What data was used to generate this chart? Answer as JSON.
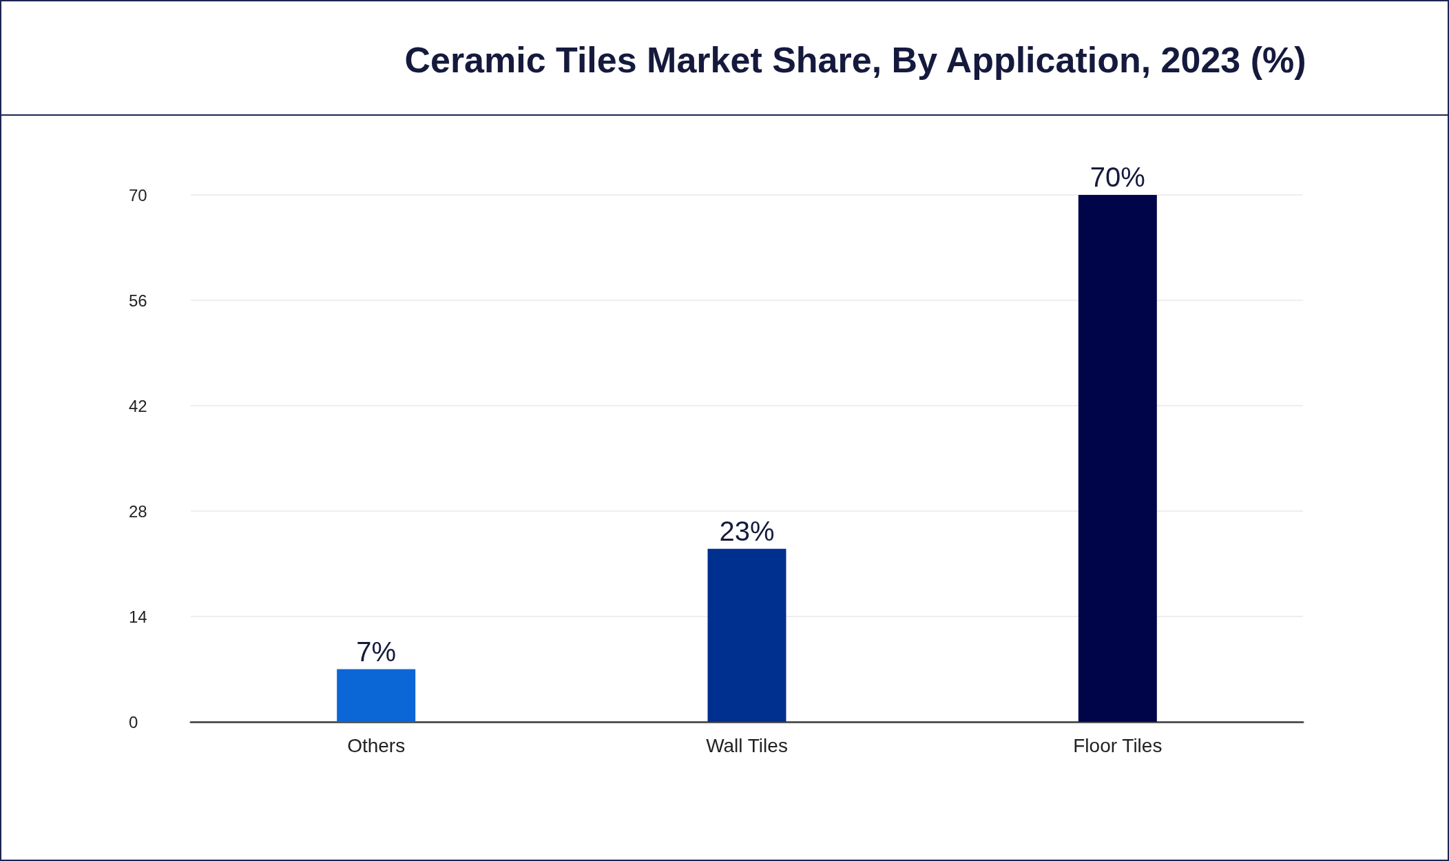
{
  "chart_data": {
    "type": "bar",
    "title": "Ceramic Tiles Market Share, By Application, 2023 (%)",
    "categories": [
      "Others",
      "Wall Tiles",
      "Floor Tiles"
    ],
    "values": [
      7,
      23,
      70
    ],
    "colors": [
      "#0b66d6",
      "#00308f",
      "#00054a"
    ],
    "value_labels": [
      "7%",
      "23%",
      "70%"
    ],
    "ylim": [
      0,
      70
    ],
    "yticks": [
      0,
      14,
      28,
      42,
      56,
      70
    ],
    "grid": "y"
  }
}
